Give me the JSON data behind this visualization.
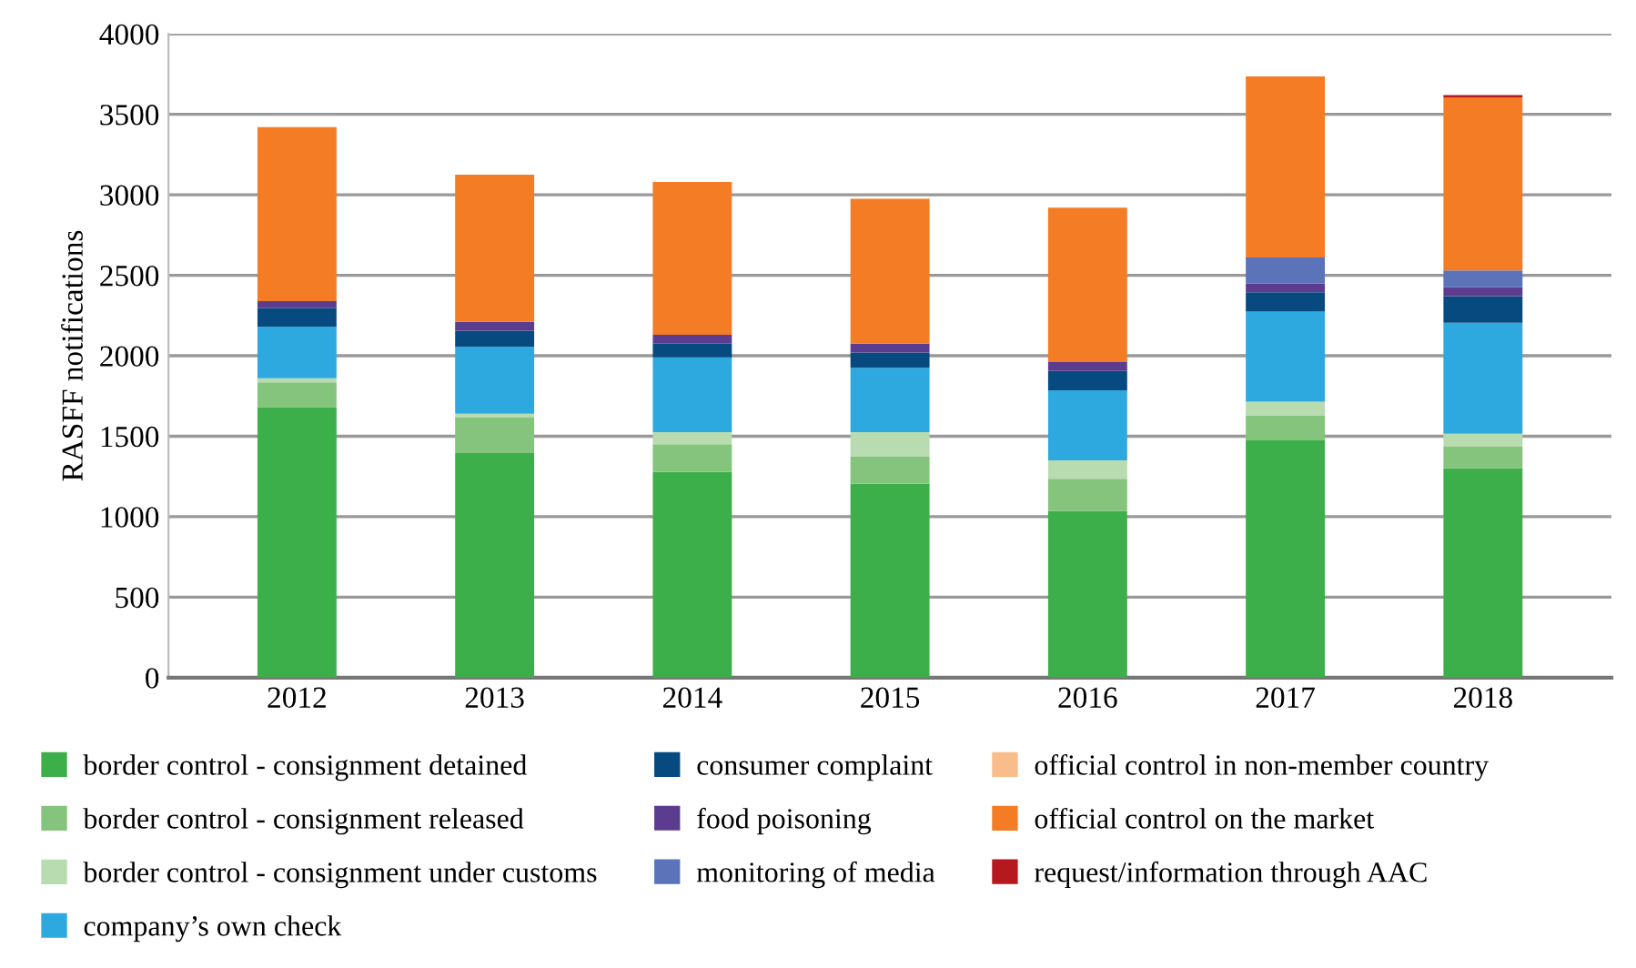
{
  "chart_data": {
    "type": "bar",
    "stacked": true,
    "ylabel": "RASFF notifications",
    "categories": [
      "2012",
      "2013",
      "2014",
      "2015",
      "2016",
      "2017",
      "2018"
    ],
    "series": [
      {
        "name": "border control - consignment detained",
        "color": "#3daf4a",
        "values": [
          1680,
          1395,
          1280,
          1205,
          1035,
          1475,
          1300
        ]
      },
      {
        "name": "border control - consignment released",
        "color": "#84c47c",
        "values": [
          155,
          220,
          170,
          170,
          200,
          155,
          135
        ]
      },
      {
        "name": "border control - consignment under customs",
        "color": "#b8dbb0",
        "values": [
          25,
          25,
          75,
          150,
          115,
          85,
          80
        ]
      },
      {
        "name": "company’s own check",
        "color": "#2ea9df",
        "values": [
          320,
          415,
          465,
          400,
          435,
          560,
          690
        ]
      },
      {
        "name": "consumer complaint",
        "color": "#074a7f",
        "values": [
          115,
          100,
          85,
          95,
          120,
          120,
          165
        ]
      },
      {
        "name": "food poisoning",
        "color": "#5c3c8f",
        "values": [
          45,
          55,
          55,
          55,
          55,
          55,
          55
        ]
      },
      {
        "name": "monitoring of media",
        "color": "#5b73b8",
        "values": [
          0,
          0,
          0,
          0,
          0,
          160,
          105
        ]
      },
      {
        "name": "official control in non-member country",
        "color": "#f9bd8b",
        "values": [
          0,
          0,
          0,
          0,
          0,
          0,
          0
        ]
      },
      {
        "name": "official control on the market",
        "color": "#f37c25",
        "values": [
          1080,
          915,
          950,
          900,
          960,
          1125,
          1075
        ]
      },
      {
        "name": "request/information through AAC",
        "color": "#b5191f",
        "values": [
          0,
          0,
          0,
          0,
          0,
          0,
          15
        ]
      }
    ],
    "ylim": [
      0,
      4000
    ],
    "yticks": [
      0,
      500,
      1000,
      1500,
      2000,
      2500,
      3000,
      3500,
      4000
    ],
    "grid": "y",
    "legend": "bottom"
  }
}
